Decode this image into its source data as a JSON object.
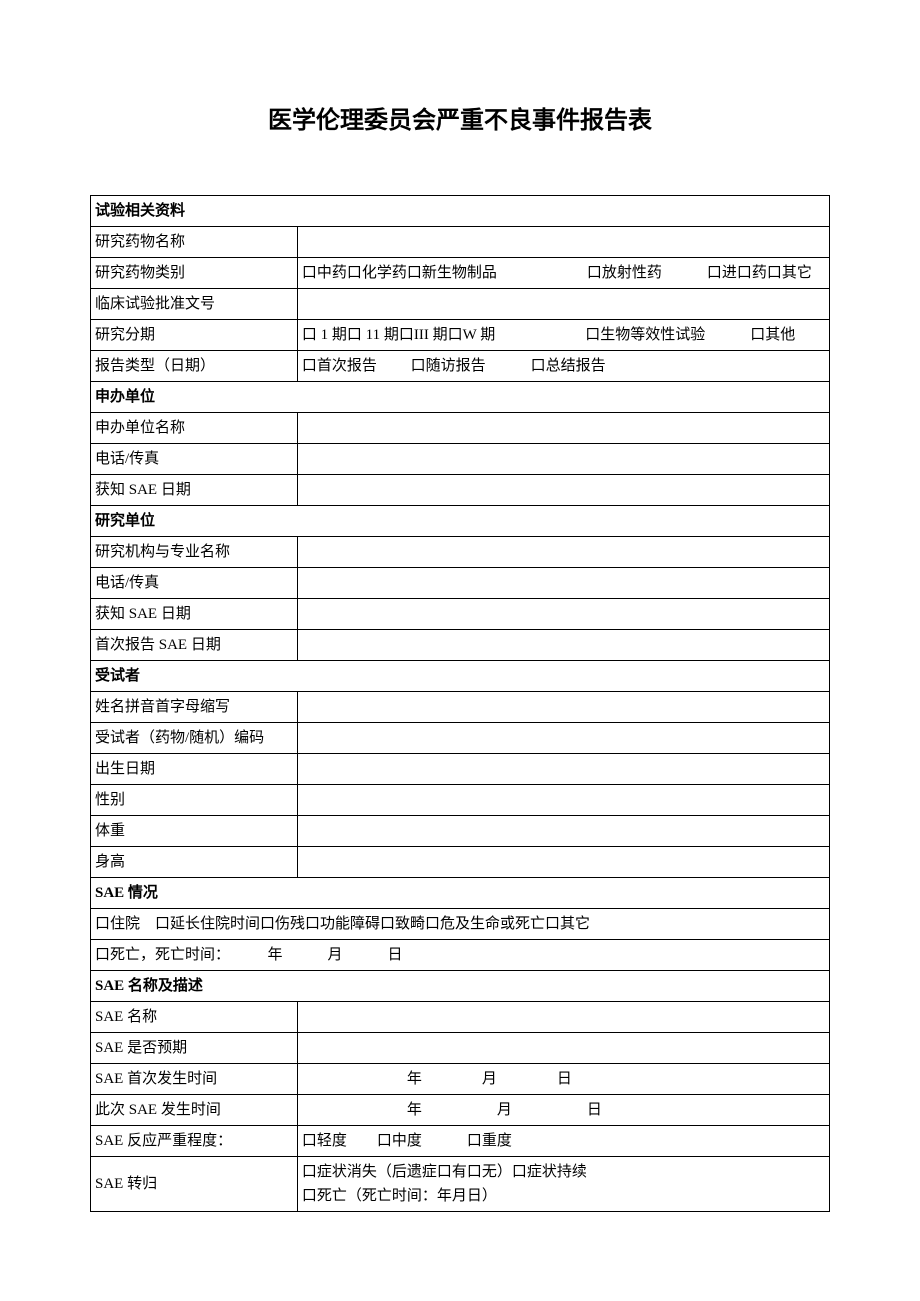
{
  "title": "医学伦理委员会严重不良事件报告表",
  "sections": {
    "trial": {
      "header": "试验相关资料",
      "drug_name_label": "研究药物名称",
      "drug_category_label": "研究药物类别",
      "drug_category_value": "口中药口化学药口新生物制品　　　　　　口放射性药　　　口进口药口其它",
      "approval_label": "临床试验批准文号",
      "phase_label": "研究分期",
      "phase_value": "口 1 期口 11 期口III 期口W 期　　　　　　口生物等效性试验　　　口其他",
      "report_type_label": "报告类型（日期）",
      "report_type_value": "口首次报告　　 口随访报告　　　口总结报告"
    },
    "sponsor": {
      "header": "申办单位",
      "name_label": "申办单位名称",
      "tel_label": "电话/传真",
      "sae_date_label": "获知 SAE 日期"
    },
    "research": {
      "header": "研究单位",
      "org_label": "研究机构与专业名称",
      "tel_label": "电话/传真",
      "sae_date_label": "获知 SAE 日期",
      "first_report_label": "首次报告 SAE 日期"
    },
    "subject": {
      "header": "受试者",
      "initials_label": "姓名拼音首字母缩写",
      "code_label": "受试者（药物/随机）编码",
      "dob_label": "出生日期",
      "gender_label": "性别",
      "weight_label": "体重",
      "height_label": "身高"
    },
    "sae_status": {
      "header": "SAE 情况",
      "status_line": "口住院　口延长住院时间口伤残口功能障碍口致畸口危及生命或死亡口其它",
      "death_line": "口死亡，死亡时间：　　　年　　　月　　　日"
    },
    "sae_desc": {
      "header": "SAE 名称及描述",
      "name_label": "SAE 名称",
      "expected_label": "SAE 是否预期",
      "first_time_label": "SAE 首次发生时间",
      "first_time_value": "　　　　　　　年　　　　月　　　　日",
      "this_time_label": "此次 SAE 发生时间",
      "this_time_value": "　　　　　　　年　　　　　月　　　　　日",
      "severity_label": "SAE 反应严重程度：",
      "severity_value": "口轻度　　口中度　　　口重度",
      "outcome_label": "SAE 转归",
      "outcome_value": "口症状消失（后遗症口有口无）口症状持续\n口死亡（死亡时间：年月日）"
    }
  }
}
